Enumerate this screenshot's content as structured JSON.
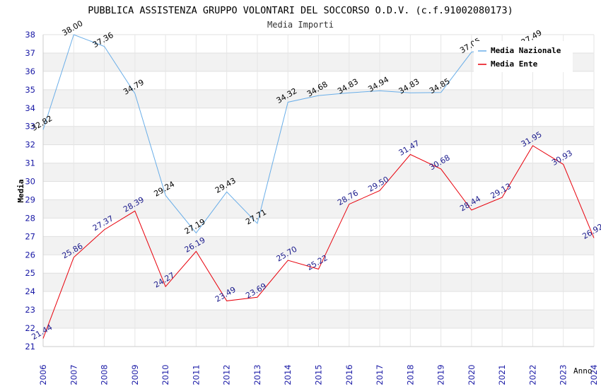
{
  "chart_data": {
    "type": "line",
    "title": "PUBBLICA ASSISTENZA GRUPPO VOLONTARI DEL SOCCORSO O.D.V. (c.f.91002080173)",
    "subtitle": "Media Importi",
    "xlabel": "Anno",
    "ylabel": "Media",
    "ylim": [
      21,
      38
    ],
    "yticks": [
      "21",
      "22",
      "23",
      "24",
      "25",
      "26",
      "27",
      "28",
      "29",
      "30",
      "31",
      "32",
      "33",
      "34",
      "35",
      "36",
      "37",
      "38"
    ],
    "categories": [
      "2006",
      "2007",
      "2008",
      "2009",
      "2010",
      "2011",
      "2012",
      "2013",
      "2014",
      "2015",
      "2016",
      "2017",
      "2018",
      "2019",
      "2020",
      "2021",
      "2022",
      "2023",
      "2024"
    ],
    "series": [
      {
        "name": "Media Nazionale",
        "color": "#6aaee8",
        "label_color": "#000000",
        "values": [
          32.82,
          38.0,
          37.36,
          34.79,
          29.24,
          27.19,
          29.43,
          27.71,
          34.32,
          34.68,
          34.83,
          34.94,
          34.83,
          34.85,
          37.05,
          null,
          37.49,
          null,
          null
        ],
        "labels": [
          "32.82",
          "38.00",
          "37.36",
          "34.79",
          "29.24",
          "27.19",
          "29.43",
          "27.71",
          "34.32",
          "34.68",
          "34.83",
          "34.94",
          "34.83",
          "34.85",
          "37.05",
          "",
          "37.49",
          "",
          ""
        ]
      },
      {
        "name": "Media Ente",
        "color": "#e8000b",
        "label_color": "#1a1a8c",
        "values": [
          21.44,
          25.86,
          27.37,
          28.39,
          24.27,
          26.19,
          23.49,
          23.69,
          25.7,
          25.22,
          28.76,
          29.5,
          31.47,
          30.68,
          28.44,
          29.13,
          31.95,
          30.93,
          26.92
        ],
        "labels": [
          "21.44",
          "25.86",
          "27.37",
          "28.39",
          "24.27",
          "26.19",
          "23.49",
          "23.69",
          "25.70",
          "25.22",
          "28.76",
          "29.50",
          "31.47",
          "30.68",
          "28.44",
          "29.13",
          "31.95",
          "30.93",
          "26.92"
        ]
      }
    ],
    "legend": "top-right",
    "grid": true
  },
  "colors": {
    "band": "#f2f2f2",
    "axis_text": "#1a1aa6",
    "title_text": "#000000"
  }
}
